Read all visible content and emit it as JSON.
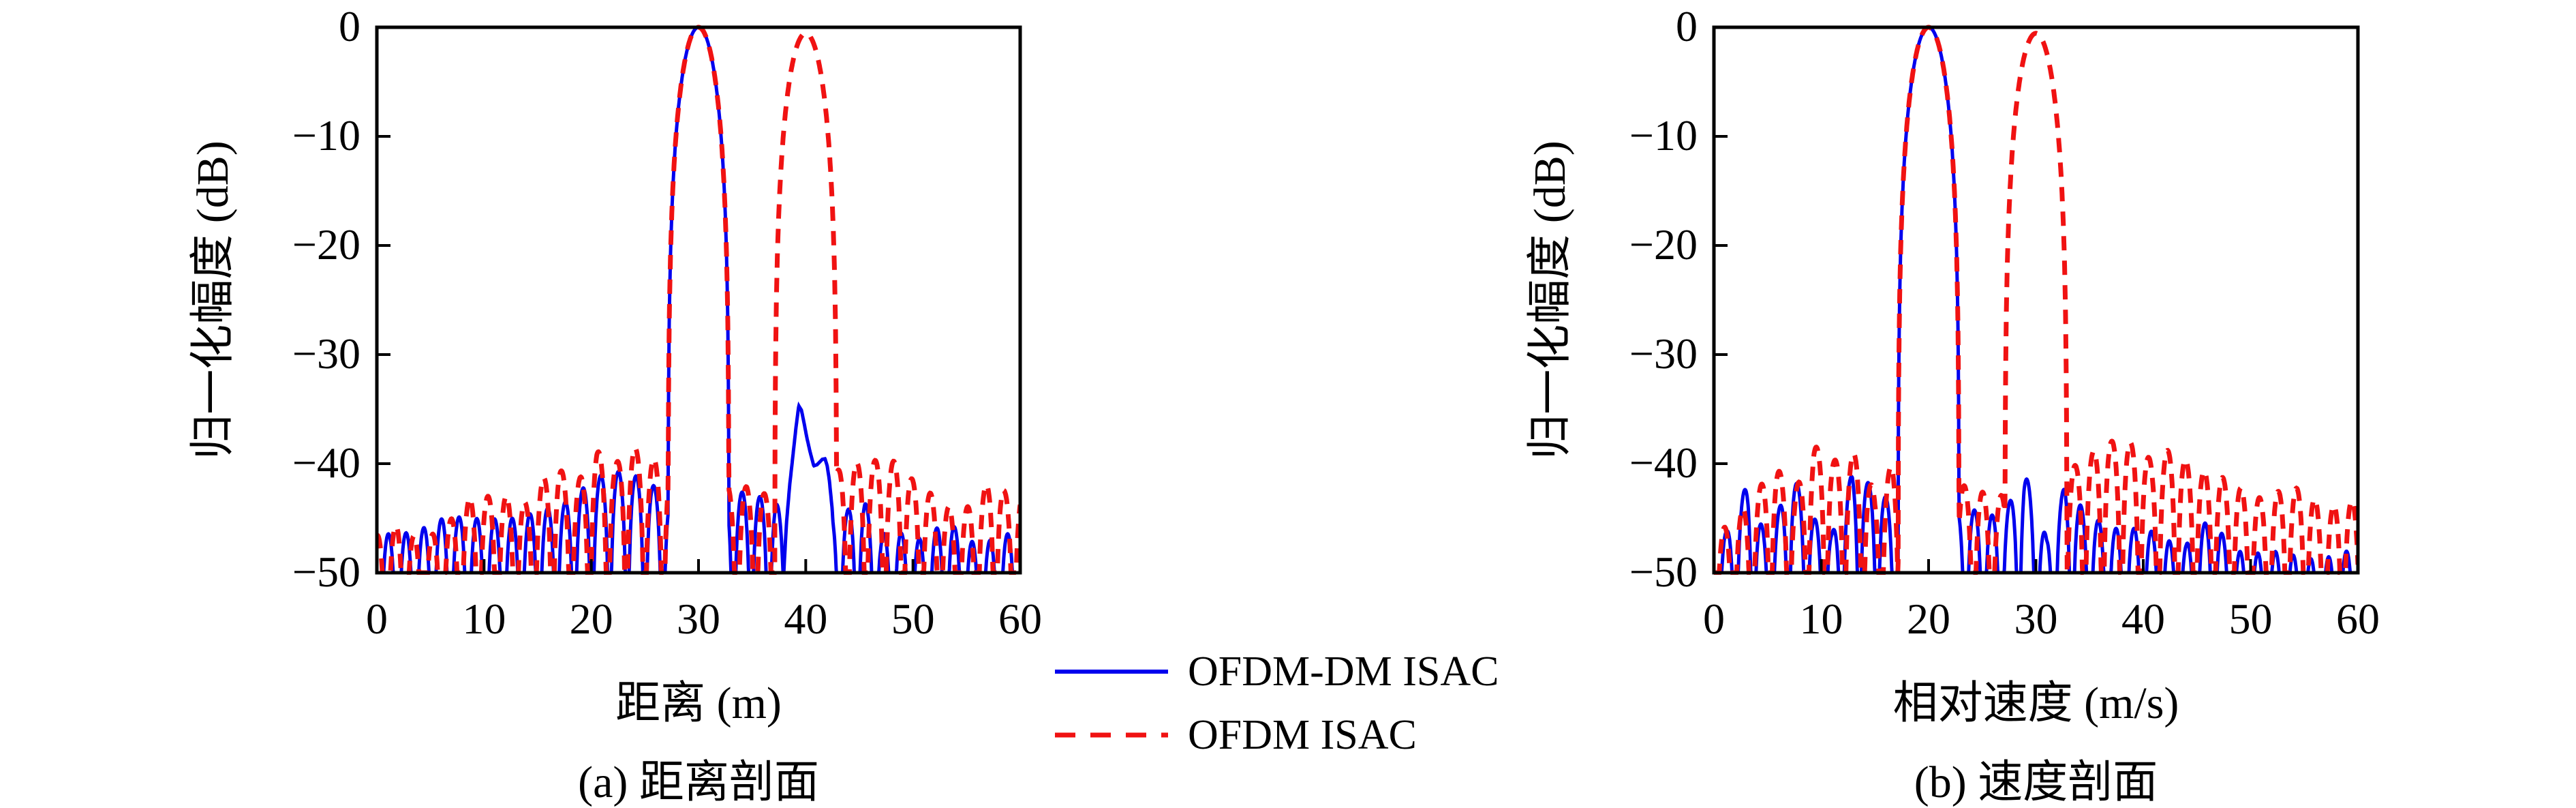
{
  "figure": {
    "background": "#ffffff"
  },
  "legend": {
    "items": [
      {
        "label": "OFDM-DM ISAC",
        "color": "#0000EE",
        "style": "solid"
      },
      {
        "label": "OFDM ISAC",
        "color": "#F01212",
        "style": "dashed"
      }
    ]
  },
  "chart_data": [
    {
      "type": "line",
      "caption": "(a) 距离剖面",
      "xlabel": "距离 (m)",
      "ylabel": "归一化幅度 (dB)",
      "xlim": [
        0,
        60
      ],
      "ylim": [
        -50,
        0
      ],
      "grid": false,
      "xticks": [
        0,
        10,
        20,
        30,
        40,
        50,
        60
      ],
      "xtick_labels": [
        "0",
        "10",
        "20",
        "30",
        "40",
        "50",
        "60"
      ],
      "yticks": [
        0,
        -10,
        -20,
        -30,
        -40,
        -50
      ],
      "ytick_labels": [
        "0",
        "−10",
        "−20",
        "−30",
        "−40",
        "−50"
      ],
      "series": [
        {
          "name": "OFDM-DM ISAC",
          "color": "#0000EE",
          "style": "solid",
          "line_width": 5,
          "peaks": [
            {
              "center": 30,
              "peak_db": 0,
              "null_halfwidth": 2.85
            }
          ],
          "ghost": [
            [
              37.95,
              -50
            ],
            [
              38.2,
              -45.5
            ],
            [
              38.5,
              -42
            ],
            [
              38.8,
              -39.3
            ],
            [
              39.1,
              -36.6
            ],
            [
              39.35,
              -34.7
            ],
            [
              39.6,
              -35.1
            ],
            [
              39.85,
              -36.3
            ],
            [
              40.1,
              -37.6
            ],
            [
              40.4,
              -38.9
            ],
            [
              40.75,
              -40.2
            ],
            [
              41.05,
              -40.1
            ],
            [
              41.3,
              -39.85
            ],
            [
              41.55,
              -39.6
            ],
            [
              41.8,
              -39.55
            ],
            [
              42.0,
              -40.2
            ],
            [
              42.2,
              -41.5
            ],
            [
              42.45,
              -44
            ],
            [
              42.65,
              -47
            ],
            [
              42.8,
              -50
            ]
          ],
          "sidelobe_spacing": 1.65,
          "sidelobe_phase": 0.25,
          "sidelobe_envelope": [
            [
              0,
              -46.5
            ],
            [
              3.5,
              -46.3
            ],
            [
              6.6,
              -44.8
            ],
            [
              10,
              -45.1
            ],
            [
              13,
              -45
            ],
            [
              15.6,
              -44.2
            ],
            [
              17.9,
              -43.4
            ],
            [
              19.5,
              -42
            ],
            [
              21.3,
              -40.8
            ],
            [
              23,
              -40.7
            ],
            [
              24.6,
              -41.3
            ],
            [
              26.3,
              -42.3
            ],
            [
              27.5,
              -43.2
            ],
            [
              33.2,
              -42.4
            ],
            [
              35.6,
              -43
            ],
            [
              37.2,
              -43.4
            ],
            [
              38.2,
              -46
            ],
            [
              43.5,
              -44.4
            ],
            [
              45.5,
              -43.5
            ],
            [
              47,
              -46.5
            ],
            [
              48.5,
              -46
            ],
            [
              50,
              -47.3
            ],
            [
              51.5,
              -46.2
            ],
            [
              53.5,
              -45.4
            ],
            [
              55,
              -47
            ],
            [
              56.5,
              -47.4
            ],
            [
              58,
              -46.6
            ],
            [
              60,
              -46.2
            ]
          ]
        },
        {
          "name": "OFDM ISAC",
          "color": "#F01212",
          "style": "dashed",
          "line_width": 7,
          "peaks": [
            {
              "center": 30,
              "peak_db": 0,
              "null_halfwidth": 2.85
            },
            {
              "center": 40,
              "peak_db": -0.55,
              "null_halfwidth": 2.9
            }
          ],
          "sidelobe_spacing": 1.72,
          "sidelobe_phase": 0.9,
          "sidelobe_envelope": [
            [
              0,
              -46.6
            ],
            [
              2,
              -45.6
            ],
            [
              4,
              -47
            ],
            [
              6,
              -46.1
            ],
            [
              8.7,
              -43.1
            ],
            [
              11.8,
              -42.9
            ],
            [
              14,
              -43.6
            ],
            [
              16.5,
              -39.9
            ],
            [
              18.5,
              -42
            ],
            [
              20.5,
              -38.8
            ],
            [
              22.3,
              -40
            ],
            [
              23.5,
              -38.1
            ],
            [
              25,
              -39.3
            ],
            [
              26.6,
              -39.8
            ],
            [
              27.6,
              -39.6
            ],
            [
              33.3,
              -42.4
            ],
            [
              34.5,
              -42.1
            ],
            [
              36,
              -42.6
            ],
            [
              37,
              -43.6
            ],
            [
              44,
              -40.1
            ],
            [
              45.9,
              -39.7
            ],
            [
              47.2,
              -39.7
            ],
            [
              48.6,
              -39.8
            ],
            [
              50,
              -41.5
            ],
            [
              51.5,
              -42.6
            ],
            [
              53,
              -43.8
            ],
            [
              54.5,
              -44.5
            ],
            [
              56,
              -43.1
            ],
            [
              57.5,
              -41
            ],
            [
              58.6,
              -42.6
            ],
            [
              60,
              -42.9
            ]
          ]
        }
      ]
    },
    {
      "type": "line",
      "caption": "(b) 速度剖面",
      "xlabel": "相对速度 (m/s)",
      "ylabel": "归一化幅度 (dB)",
      "xlim": [
        0,
        60
      ],
      "ylim": [
        -50,
        0
      ],
      "grid": false,
      "xticks": [
        0,
        10,
        20,
        30,
        40,
        50,
        60
      ],
      "xtick_labels": [
        "0",
        "10",
        "20",
        "30",
        "40",
        "50",
        "60"
      ],
      "yticks": [
        0,
        -10,
        -20,
        -30,
        -40,
        -50
      ],
      "ytick_labels": [
        "0",
        "−10",
        "−20",
        "−30",
        "−40",
        "−50"
      ],
      "series": [
        {
          "name": "OFDM-DM ISAC",
          "color": "#0000EE",
          "style": "solid",
          "line_width": 5,
          "peaks": [
            {
              "center": 20,
              "peak_db": 0,
              "null_halfwidth": 2.85
            }
          ],
          "sidelobe_spacing": 1.65,
          "sidelobe_phase": 0.35,
          "sidelobe_envelope": [
            [
              0,
              -46.6
            ],
            [
              1.2,
              -46.2
            ],
            [
              3.2,
              -41.6
            ],
            [
              5,
              -47.4
            ],
            [
              7.2,
              -40.7
            ],
            [
              9.3,
              -45
            ],
            [
              11,
              -46.4
            ],
            [
              12.9,
              -40.8
            ],
            [
              15.7,
              -42.6
            ],
            [
              16.8,
              -44.2
            ],
            [
              23.8,
              -44.1
            ],
            [
              25.3,
              -44.6
            ],
            [
              26.9,
              -44.9
            ],
            [
              28.9,
              -40.6
            ],
            [
              31,
              -46.8
            ],
            [
              32.7,
              -42
            ],
            [
              34.8,
              -44.6
            ],
            [
              36.5,
              -45.6
            ],
            [
              38.2,
              -46.2
            ],
            [
              40,
              -45.7
            ],
            [
              42,
              -47
            ],
            [
              44,
              -47.4
            ],
            [
              46.5,
              -44.6
            ],
            [
              48,
              -47.8
            ],
            [
              50,
              -48.3
            ],
            [
              52,
              -48
            ],
            [
              54,
              -48.4
            ],
            [
              56,
              -48.8
            ],
            [
              58,
              -48.4
            ],
            [
              60,
              -47.6
            ]
          ]
        },
        {
          "name": "OFDM ISAC",
          "color": "#F01212",
          "style": "dashed",
          "line_width": 7,
          "peaks": [
            {
              "center": 20,
              "peak_db": 0,
              "null_halfwidth": 2.85
            },
            {
              "center": 30,
              "peak_db": -0.55,
              "null_halfwidth": 2.9
            }
          ],
          "sidelobe_spacing": 1.72,
          "sidelobe_phase": 0.1,
          "sidelobe_envelope": [
            [
              0,
              -47
            ],
            [
              2,
              -44.6
            ],
            [
              3.5,
              -43.6
            ],
            [
              5.5,
              -39.9
            ],
            [
              7.5,
              -42.6
            ],
            [
              9.3,
              -38.3
            ],
            [
              11.2,
              -39.7
            ],
            [
              13.3,
              -39
            ],
            [
              15,
              -42.6
            ],
            [
              16.6,
              -40.1
            ],
            [
              23.6,
              -42.1
            ],
            [
              25,
              -42.6
            ],
            [
              26.3,
              -43.1
            ],
            [
              33.8,
              -40.1
            ],
            [
              36.6,
              -37.9
            ],
            [
              39.1,
              -38.1
            ],
            [
              40.8,
              -39.7
            ],
            [
              42.7,
              -38.5
            ],
            [
              44.8,
              -40.4
            ],
            [
              46.5,
              -40.9
            ],
            [
              48.2,
              -41.6
            ],
            [
              49.8,
              -42.7
            ],
            [
              51.3,
              -43.3
            ],
            [
              53.3,
              -42.1
            ],
            [
              55.3,
              -42.4
            ],
            [
              57,
              -44.5
            ],
            [
              58.5,
              -43.1
            ],
            [
              60,
              -43.6
            ]
          ]
        }
      ]
    }
  ]
}
